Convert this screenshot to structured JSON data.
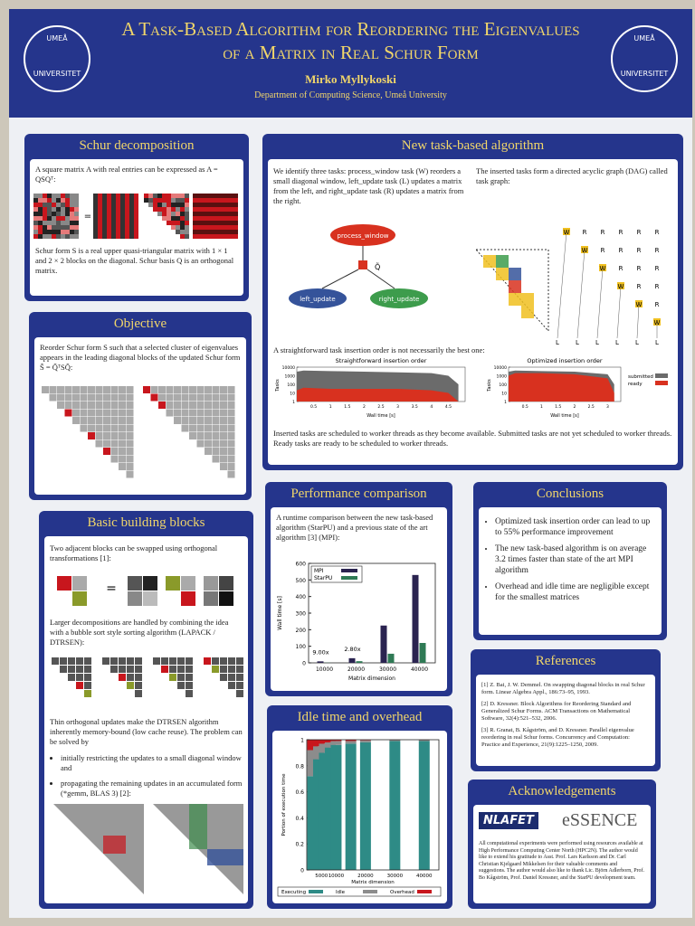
{
  "header": {
    "title_line1": "A Task-Based Algorithm for Reordering the Eigenvalues",
    "title_line2": "of a Matrix in Real Schur Form",
    "author": "Mirko Myllykoski",
    "affiliation": "Department of Computing Science, Umeå University",
    "logo_top": "UMEÅ",
    "logo_bottom": "UNIVERSITET"
  },
  "schur": {
    "title": "Schur decomposition",
    "text1": "A square matrix A with real entries can be expressed as A = QSQᵀ:",
    "eq": "=",
    "text2": "Schur form S is a real upper quasi-triangular matrix with 1 × 1 and 2 × 2 blocks on the diagonal. Schur basis Q is an orthogonal matrix."
  },
  "objective": {
    "title": "Objective",
    "text": "Reorder Schur form S such that a selected cluster of eigenvalues appears in the leading diagonal blocks of the updated Schur form S̃ = Q̃ᵀSQ̃:"
  },
  "blocks": {
    "title": "Basic building blocks",
    "p1": "Two adjacent blocks can be swapped using orthogonal transformations [1]:",
    "eq": "=",
    "p2": "Larger decompositions are handled by combining the idea with a bubble sort style sorting algorithm (LAPACK / DTRSEN):",
    "p3": "Thin orthogonal updates make the DTRSEN algorithm inherently memory-bound (low cache reuse). The problem can be solved by",
    "bullets": [
      "initially restricting the updates to a small diagonal window and",
      "propagating the remaining updates in an accumulated form (*gemm, BLAS 3) [2]:"
    ]
  },
  "task": {
    "title": "New task-based algorithm",
    "p1": "We identify three tasks: process_window task (W) reorders a small diagonal window, left_update task (L) updates a matrix from the left, and right_update task (R) updates a matrix from the right.",
    "p2": "The inserted tasks form a directed acyclic graph (DAG) called task graph:",
    "nodes": [
      "process_window",
      "left_update",
      "right_update"
    ],
    "q_label": "Q̃",
    "dag": {
      "window": "W",
      "right": "R",
      "left": "L"
    },
    "p3": "A straightforward task insertion order is not necessarily the best one:",
    "p4": "Inserted tasks are scheduled to worker threads as they become available. Submitted tasks are not yet scheduled to worker threads. Ready tasks are ready to be scheduled to worker threads.",
    "charts": [
      {
        "title": "Straightforward insertion order",
        "ylabel": "Tasks",
        "xlabel": "Wall time [s]",
        "log_y": true,
        "ylim": [
          1,
          10000
        ],
        "yticks": [
          1,
          10,
          100,
          1000,
          10000
        ],
        "xlim": [
          0,
          5
        ],
        "xticks": [
          0.5,
          1,
          1.5,
          2,
          2.5,
          3,
          3.5,
          4,
          4.5
        ],
        "series": [
          {
            "name": "submitted",
            "color": "#6b6b6b",
            "x": [
              0,
              0.2,
              1,
              2,
              3,
              4,
              4.5,
              4.8
            ],
            "values": [
              3000,
              4000,
              3500,
              3000,
              2500,
              2000,
              1000,
              100
            ]
          },
          {
            "name": "ready",
            "color": "#d8311f",
            "x": [
              0,
              0.2,
              1,
              2,
              3,
              4,
              4.5,
              4.8
            ],
            "values": [
              20,
              40,
              30,
              30,
              30,
              20,
              10,
              1
            ]
          }
        ]
      },
      {
        "title": "Optimized insertion order",
        "ylabel": "Tasks",
        "xlabel": "Wall time [s]",
        "log_y": true,
        "ylim": [
          1,
          10000
        ],
        "yticks": [
          1,
          10,
          100,
          1000,
          10000
        ],
        "xlim": [
          0,
          3.4
        ],
        "xticks": [
          0.5,
          1,
          1.5,
          2,
          2.5,
          3
        ],
        "series": [
          {
            "name": "submitted",
            "color": "#6b6b6b",
            "x": [
              0,
              0.2,
              1,
              2,
              3,
              3.2
            ],
            "values": [
              3000,
              4000,
              3500,
              3000,
              1500,
              100
            ]
          },
          {
            "name": "ready",
            "color": "#d8311f",
            "x": [
              0,
              0.2,
              1,
              2,
              3,
              3.2
            ],
            "values": [
              1000,
              2000,
              2000,
              1500,
              500,
              10
            ]
          }
        ]
      }
    ]
  },
  "perf": {
    "title": "Performance comparison",
    "text": "A runtime comparison between the new task-based algorithm (StarPU) and a previous state of the art algorithm [3] (MPI):",
    "chart": {
      "type": "bar",
      "ylabel": "Wall time [s]",
      "xlabel": "Matrix dimension",
      "categories": [
        10000,
        20000,
        30000,
        40000
      ],
      "ylim": [
        0,
        600
      ],
      "yticks": [
        0,
        100,
        200,
        300,
        400,
        500,
        600
      ],
      "series": [
        {
          "name": "MPI",
          "color": "#2a2350",
          "values": [
            9,
            28,
            225,
            530
          ]
        },
        {
          "name": "StarPU",
          "color": "#2f7a55",
          "values": [
            1,
            10,
            55,
            120
          ]
        }
      ],
      "annotations": [
        "9.00x",
        "2.80x"
      ]
    }
  },
  "idle": {
    "title": "Idle time and overhead",
    "chart": {
      "type": "stacked-bar",
      "ylabel": "Portion of execution time",
      "xlabel": "Matrix dimension",
      "xlim": [
        0,
        45000
      ],
      "xticks": [
        5000,
        10000,
        20000,
        30000,
        40000
      ],
      "ylim": [
        0,
        1
      ],
      "yticks": [
        0,
        0.2,
        0.4,
        0.6,
        0.8,
        1
      ],
      "x": [
        2000,
        4000,
        6000,
        8000,
        10000,
        15000,
        20000,
        30000,
        40000
      ],
      "series": [
        {
          "name": "Executing",
          "color": "#2e8b86",
          "values": [
            0.72,
            0.85,
            0.9,
            0.94,
            0.96,
            0.97,
            0.98,
            0.99,
            0.99
          ]
        },
        {
          "name": "Idle",
          "color": "#8c8c8c",
          "values": [
            0.2,
            0.1,
            0.07,
            0.04,
            0.03,
            0.02,
            0.015,
            0.008,
            0.008
          ]
        },
        {
          "name": "Overhead",
          "color": "#c8161d",
          "values": [
            0.08,
            0.05,
            0.03,
            0.02,
            0.01,
            0.01,
            0.005,
            0.002,
            0.002
          ]
        }
      ]
    }
  },
  "conclusions": {
    "title": "Conclusions",
    "bullets": [
      "Optimized task insertion order can lead to up to 55% performance improvement",
      "The new task-based algorithm is on average 3.2 times faster than state of the art MPI algorithm",
      "Overhead and idle time are negligible except for the smallest matrices"
    ]
  },
  "references": {
    "title": "References",
    "items": [
      "[1] Z. Bai, J. W. Demmel. On swapping diagonal blocks in real Schur form. Linear Algebra Appl., 186:73–95, 1993.",
      "[2] D. Kressner. Block Algorithms for Reordering Standard and Generalized Schur Forms. ACM Transactions on Mathematical Software, 32(4):521–532, 2006.",
      "[3] R. Granat, B. Kågström, and D. Kressner. Parallel eigenvalue reordering in real Schur forms. Concurrency and Computation: Practice and Experience, 21(9):1225–1250, 2009."
    ]
  },
  "ack": {
    "title": "Acknowledgements",
    "logo1": "NLAFET",
    "logo2": "eSSENCE",
    "text": "All computational experiments were performed using resources available at High Performance Computing Center North (HPC2N). The author would like to extend his gratitude to Asst. Prof. Lars Karlsson and Dr. Carl Christian Kjelgaard Mikkelsen for their valuable comments and suggestions. The author would also like to thank Lic. Björn Adlerborn, Prof. Bo Kågström, Prof. Daniel Kressner, and the StarPU development team."
  }
}
